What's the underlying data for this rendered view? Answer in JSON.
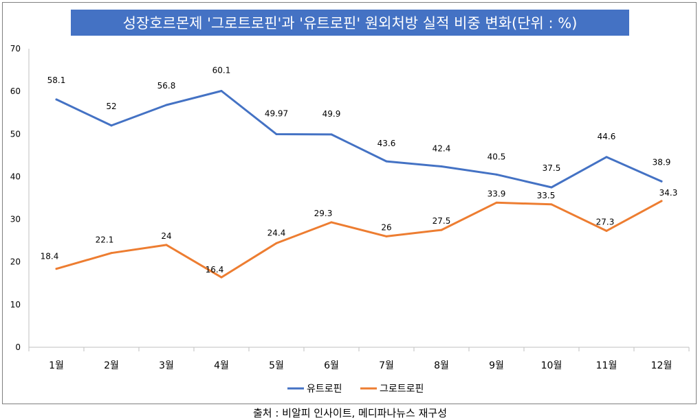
{
  "chart_data": {
    "type": "line",
    "title": "성장호르몬제 '그로트로핀'과 '유트로핀' 원외처방 실적 비중 변화(단위 : %)",
    "categories": [
      "1월",
      "2월",
      "3월",
      "4월",
      "5월",
      "6월",
      "7월",
      "8월",
      "9월",
      "10월",
      "11월",
      "12월"
    ],
    "series": [
      {
        "name": "유트로핀",
        "color": "#4472c4",
        "values": [
          58.1,
          52,
          56.8,
          60.1,
          49.97,
          49.9,
          43.6,
          42.4,
          40.5,
          37.5,
          44.6,
          38.9
        ],
        "labels": [
          "58.1",
          "52",
          "56.8",
          "60.1",
          "49.97",
          "49.9",
          "43.6",
          "42.4",
          "40.5",
          "37.5",
          "44.6",
          "38.9"
        ]
      },
      {
        "name": "그로트로핀",
        "color": "#ed7d31",
        "values": [
          18.4,
          22.1,
          24,
          16.4,
          24.4,
          29.3,
          26,
          27.5,
          33.9,
          33.5,
          27.3,
          34.3
        ],
        "labels": [
          "18.4",
          "22.1",
          "24",
          "16.4",
          "24.4",
          "29.3",
          "26",
          "27.5",
          "33.9",
          "33.5",
          "27.3",
          "34.3"
        ]
      }
    ],
    "y_ticks": [
      "0",
      "10",
      "20",
      "30",
      "40",
      "50",
      "60",
      "70"
    ],
    "ylim": [
      0,
      70
    ],
    "xlabel": "",
    "ylabel": "",
    "grid": false,
    "legend": "bottom-center"
  },
  "source_note": "출처 : 비알피 인사이트, 메디파나뉴스 재구성"
}
